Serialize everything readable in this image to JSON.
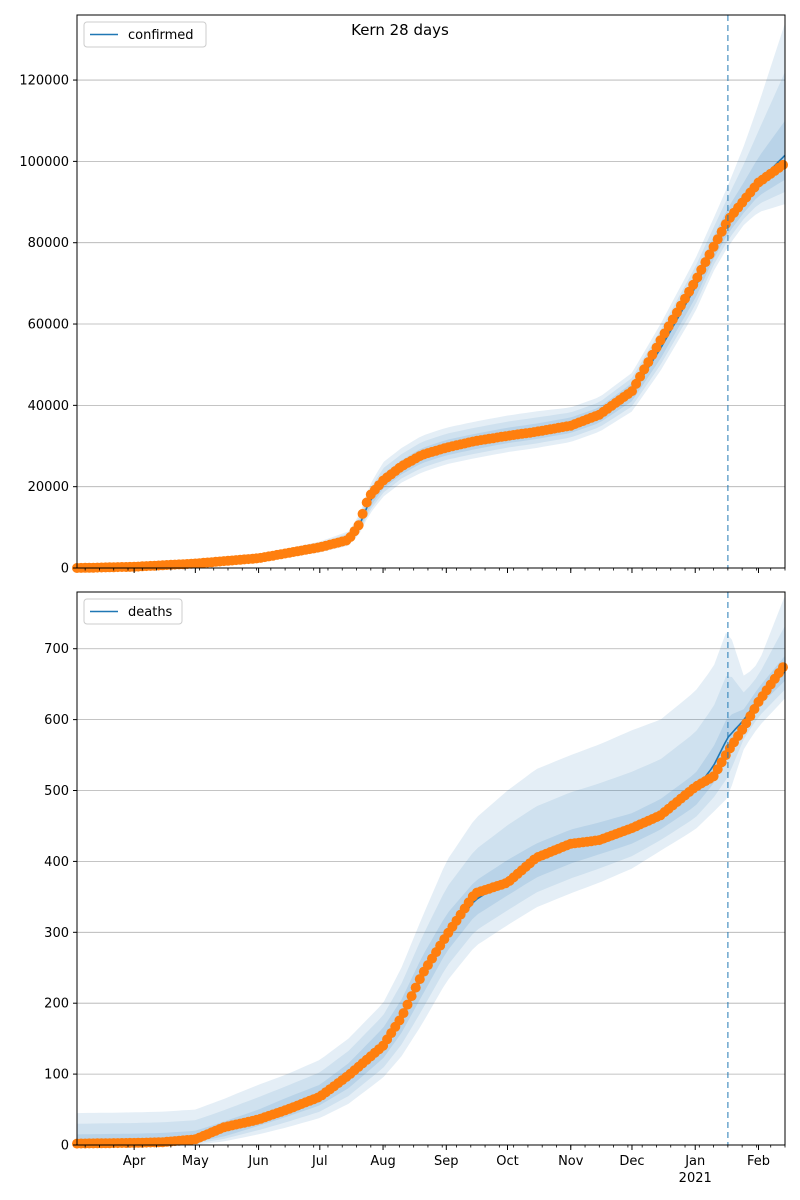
{
  "figure": {
    "title": "Kern 28 days"
  },
  "colors": {
    "line": "#1f77b4",
    "points": "#ff7f0e",
    "band": "#1f77b4",
    "grid": "#b0b0b0",
    "vline": "#1f77b4"
  },
  "chart_data": [
    {
      "type": "line",
      "legend": "confirmed",
      "legend_position": "top-left",
      "grid": "y",
      "xlim": [
        "2020-03-04",
        "2021-02-14"
      ],
      "ylim": [
        0,
        136000
      ],
      "yticks": [
        0,
        20000,
        40000,
        60000,
        80000,
        100000,
        120000
      ],
      "ytick_labels": [
        "0",
        "20000",
        "40000",
        "60000",
        "80000",
        "100000",
        "120000"
      ],
      "forecast_start": "2021-01-17",
      "x": [
        "2020-03-04",
        "2020-04-01",
        "2020-05-01",
        "2020-06-01",
        "2020-07-01",
        "2020-07-15",
        "2020-07-20",
        "2020-07-25",
        "2020-08-01",
        "2020-08-10",
        "2020-08-20",
        "2020-09-01",
        "2020-09-15",
        "2020-10-01",
        "2020-10-15",
        "2020-11-01",
        "2020-11-15",
        "2020-12-01",
        "2020-12-15",
        "2021-01-01",
        "2021-01-10",
        "2021-01-17",
        "2021-01-25",
        "2021-02-01",
        "2021-02-14"
      ],
      "model": [
        0,
        300,
        1100,
        2500,
        5000,
        7000,
        10000,
        16000,
        21000,
        24500,
        27500,
        29500,
        31000,
        32500,
        33500,
        35000,
        37500,
        43000,
        54000,
        69000,
        78500,
        85000,
        90500,
        95000,
        101500
      ],
      "band_90_lower": [
        0,
        100,
        700,
        1700,
        3800,
        5500,
        8000,
        13000,
        17500,
        21000,
        23500,
        25500,
        27000,
        28500,
        29500,
        31000,
        33500,
        38500,
        48500,
        63000,
        73000,
        79000,
        84500,
        87500,
        89500
      ],
      "band_90_upper": [
        300,
        500,
        1500,
        3300,
        6500,
        9000,
        12500,
        20000,
        26000,
        29500,
        32500,
        34500,
        36000,
        37500,
        38500,
        39500,
        42000,
        48000,
        60000,
        76000,
        86000,
        94000,
        104000,
        114000,
        134000
      ],
      "band_50_lower": [
        0,
        200,
        900,
        2100,
        4400,
        6200,
        9000,
        14500,
        19500,
        23000,
        25800,
        27700,
        29200,
        30700,
        31700,
        33200,
        35700,
        41000,
        51500,
        66300,
        76000,
        82200,
        87500,
        91500,
        95500
      ],
      "band_50_upper": [
        100,
        400,
        1300,
        2900,
        5700,
        8000,
        11200,
        17800,
        23000,
        26500,
        29500,
        31500,
        33000,
        34500,
        35500,
        37000,
        39500,
        45500,
        57000,
        72000,
        81500,
        88500,
        95000,
        101000,
        110000
      ],
      "observed": [
        0,
        300,
        1100,
        2400,
        5100,
        6900,
        10500,
        17500,
        21500,
        25000,
        27800,
        29600,
        31200,
        32500,
        33500,
        35000,
        37700,
        43500,
        56000,
        70500,
        79000,
        85500,
        90500,
        94800,
        99500
      ]
    },
    {
      "type": "line",
      "legend": "deaths",
      "legend_position": "top-left",
      "grid": "y",
      "xlim": [
        "2020-03-04",
        "2021-02-14"
      ],
      "ylim": [
        0,
        780
      ],
      "yticks": [
        0,
        100,
        200,
        300,
        400,
        500,
        600,
        700
      ],
      "ytick_labels": [
        "0",
        "100",
        "200",
        "300",
        "400",
        "500",
        "600",
        "700"
      ],
      "forecast_start": "2021-01-17",
      "x": [
        "2020-03-04",
        "2020-04-01",
        "2020-04-15",
        "2020-05-01",
        "2020-05-15",
        "2020-06-01",
        "2020-06-15",
        "2020-07-01",
        "2020-07-15",
        "2020-08-01",
        "2020-08-10",
        "2020-08-20",
        "2020-09-01",
        "2020-09-15",
        "2020-10-01",
        "2020-10-15",
        "2020-11-01",
        "2020-11-15",
        "2020-12-01",
        "2020-12-15",
        "2021-01-01",
        "2021-01-10",
        "2021-01-17",
        "2021-01-25",
        "2021-02-01",
        "2021-02-14"
      ],
      "model": [
        2,
        3,
        4,
        8,
        20,
        35,
        50,
        68,
        95,
        140,
        180,
        235,
        295,
        345,
        375,
        400,
        420,
        430,
        445,
        465,
        500,
        535,
        575,
        600,
        630,
        668
      ],
      "band_90_lower": [
        0,
        0,
        0,
        0,
        5,
        15,
        25,
        38,
        58,
        95,
        125,
        170,
        230,
        280,
        310,
        335,
        355,
        370,
        390,
        415,
        445,
        470,
        490,
        560,
        590,
        630
      ],
      "band_90_upper": [
        45,
        46,
        47,
        50,
        65,
        85,
        100,
        120,
        150,
        200,
        250,
        320,
        400,
        460,
        500,
        530,
        550,
        565,
        585,
        600,
        640,
        675,
        730,
        660,
        680,
        775
      ],
      "band_50_lower": [
        0,
        1,
        2,
        4,
        12,
        27,
        40,
        56,
        80,
        122,
        158,
        210,
        272,
        323,
        352,
        377,
        397,
        410,
        425,
        445,
        478,
        510,
        548,
        588,
        618,
        655
      ],
      "band_50_upper": [
        15,
        16,
        17,
        20,
        33,
        50,
        67,
        85,
        115,
        165,
        205,
        265,
        325,
        372,
        402,
        425,
        445,
        455,
        468,
        488,
        524,
        562,
        605,
        615,
        645,
        690
      ],
      "observed": [
        2,
        3,
        4,
        8,
        25,
        36,
        50,
        68,
        98,
        140,
        180,
        240,
        295,
        355,
        370,
        405,
        425,
        430,
        447,
        465,
        505,
        520,
        555,
        590,
        625,
        678
      ]
    }
  ],
  "x_axis": {
    "ticks": [
      "2020-04-01",
      "2020-05-01",
      "2020-06-01",
      "2020-07-01",
      "2020-08-01",
      "2020-09-01",
      "2020-10-01",
      "2020-11-01",
      "2020-12-01",
      "2021-01-01",
      "2021-02-01"
    ],
    "tick_labels": [
      "Apr",
      "May",
      "Jun",
      "Jul",
      "Aug",
      "Sep",
      "Oct",
      "Nov",
      "Dec",
      "Jan",
      "Feb"
    ],
    "year_label": "2021"
  }
}
